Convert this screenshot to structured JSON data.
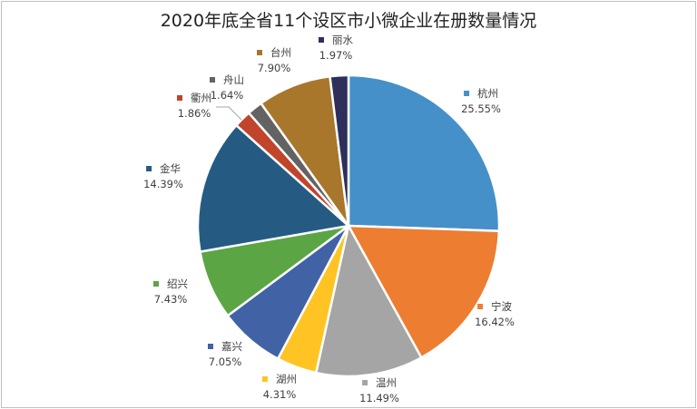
{
  "chart_data": {
    "type": "pie",
    "title": "2020年底全省11个设区市小微企业在册数量情况",
    "categories": [
      "杭州",
      "宁波",
      "温州",
      "湖州",
      "嘉兴",
      "绍兴",
      "金华",
      "衢州",
      "舟山",
      "台州",
      "丽水"
    ],
    "values": [
      25.55,
      16.42,
      11.49,
      4.31,
      7.05,
      7.43,
      14.39,
      1.86,
      1.64,
      7.9,
      1.97
    ],
    "labels": [
      "25.55%",
      "16.42%",
      "11.49%",
      "4.31%",
      "7.05%",
      "7.43%",
      "14.39%",
      "1.86%",
      "1.64%",
      "7.90%",
      "1.97%"
    ],
    "colors": [
      "#4590c8",
      "#ed7d31",
      "#a5a5a5",
      "#ffc424",
      "#4262a6",
      "#5ca544",
      "#255b82",
      "#c0452a",
      "#636363",
      "#a8772b",
      "#2e2f5a"
    ],
    "legend": "none (data labels)"
  }
}
